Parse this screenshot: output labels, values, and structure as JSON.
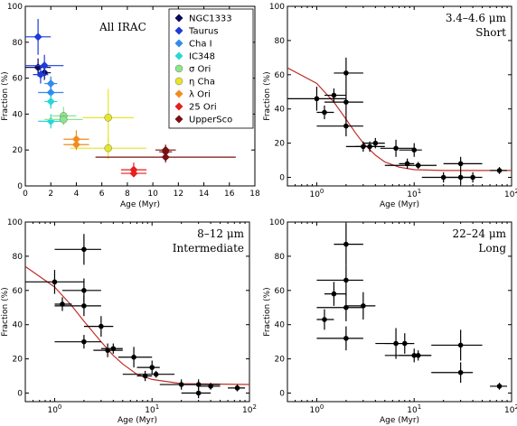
{
  "chart_data": [
    {
      "type": "scatter",
      "title": "All IRAC",
      "xlabel": "Age (Myr)",
      "ylabel": "Fraction (%)",
      "xscale": "linear",
      "xlim": [
        0,
        18
      ],
      "ylim": [
        0,
        100
      ],
      "xticks": [
        "0",
        "2",
        "4",
        "6",
        "8",
        "10",
        "12",
        "14",
        "16",
        "18"
      ],
      "yticks": [
        "0",
        "20",
        "40",
        "60",
        "80",
        "100"
      ],
      "legend_position": "top-right",
      "series": [
        {
          "name": "NGC1333",
          "color": "#0a0a5c",
          "marker": "diamond",
          "points": [
            {
              "x": 1.0,
              "y": 66,
              "xerr": 1.0,
              "yerr": 5
            },
            {
              "x": 1.5,
              "y": 63,
              "xerr": 0.5,
              "yerr": 4
            }
          ]
        },
        {
          "name": "Taurus",
          "color": "#1e3bd8",
          "marker": "diamond",
          "points": [
            {
              "x": 1.0,
              "y": 83,
              "xerr": 1.0,
              "yerr": 10
            },
            {
              "x": 1.5,
              "y": 67,
              "xerr": 1.5,
              "yerr": 6
            },
            {
              "x": 1.2,
              "y": 62,
              "xerr": 0.6,
              "yerr": 5
            }
          ]
        },
        {
          "name": "Cha I",
          "color": "#2f8bf0",
          "marker": "diamond",
          "points": [
            {
              "x": 2.0,
              "y": 52,
              "xerr": 1.0,
              "yerr": 8
            },
            {
              "x": 2.0,
              "y": 57,
              "xerr": 0.5,
              "yerr": 4
            }
          ]
        },
        {
          "name": "IC348",
          "color": "#29d6d6",
          "marker": "diamond",
          "points": [
            {
              "x": 2.0,
              "y": 47,
              "xerr": 0.5,
              "yerr": 4
            },
            {
              "x": 2.0,
              "y": 36,
              "xerr": 1.0,
              "yerr": 4
            }
          ]
        },
        {
          "name": "σ Ori",
          "color": "#8ce68c",
          "marker": "circle",
          "points": [
            {
              "x": 3.0,
              "y": 39,
              "xerr": 1.0,
              "yerr": 5
            },
            {
              "x": 3.0,
              "y": 37,
              "xerr": 1.5,
              "yerr": 3
            }
          ]
        },
        {
          "name": "η Cha",
          "color": "#e6e62a",
          "marker": "circle",
          "points": [
            {
              "x": 6.5,
              "y": 38,
              "xerr": 2.0,
              "yerr": 16
            },
            {
              "x": 6.5,
              "y": 21,
              "xerr": 3.0,
              "yerr": 6
            }
          ]
        },
        {
          "name": "λ Ori",
          "color": "#f08c1e",
          "marker": "diamond",
          "points": [
            {
              "x": 4.0,
              "y": 26,
              "xerr": 1.0,
              "yerr": 5
            },
            {
              "x": 4.0,
              "y": 23,
              "xerr": 1.0,
              "yerr": 3
            }
          ]
        },
        {
          "name": "25 Ori",
          "color": "#e61e1e",
          "marker": "diamond",
          "points": [
            {
              "x": 8.5,
              "y": 9,
              "xerr": 1.0,
              "yerr": 4
            },
            {
              "x": 8.5,
              "y": 7,
              "xerr": 1.0,
              "yerr": 2
            }
          ]
        },
        {
          "name": "UpperSco",
          "color": "#7a1010",
          "marker": "diamond",
          "points": [
            {
              "x": 11.0,
              "y": 16,
              "xerr": 5.5,
              "yerr": 3
            },
            {
              "x": 11.0,
              "y": 19,
              "xerr": 0.5,
              "yerr": 4
            },
            {
              "x": 11.0,
              "y": 20,
              "xerr": 0.8,
              "yerr": 2
            }
          ]
        }
      ]
    },
    {
      "type": "scatter",
      "title": "3.4–4.6 μm",
      "subtitle": "Short",
      "xlabel": "Age (Myr)",
      "ylabel": "Fraction (%)",
      "xscale": "log",
      "xlim": [
        0.5,
        100
      ],
      "ylim": [
        -5,
        100
      ],
      "xticks": [
        "10^0",
        "10^1",
        "10^2"
      ],
      "yticks": [
        "0",
        "20",
        "40",
        "60",
        "80",
        "100"
      ],
      "fit_curve": {
        "color": "#c0302a",
        "points": [
          [
            0.5,
            64
          ],
          [
            1.0,
            55
          ],
          [
            1.5,
            44
          ],
          [
            2.0,
            34
          ],
          [
            2.5,
            26
          ],
          [
            3.0,
            20
          ],
          [
            4.0,
            13
          ],
          [
            5.0,
            9
          ],
          [
            7.0,
            6
          ],
          [
            10.0,
            4.5
          ],
          [
            20.0,
            4
          ],
          [
            100.0,
            4
          ]
        ]
      },
      "points": [
        {
          "x": 1.0,
          "y": 46,
          "xlo": 0.5,
          "xhi": 2.0,
          "yerr": 7
        },
        {
          "x": 1.2,
          "y": 38,
          "xlo": 1.0,
          "xhi": 1.5,
          "yerr": 4
        },
        {
          "x": 1.5,
          "y": 48,
          "xlo": 1.2,
          "xhi": 2.0,
          "yerr": 4
        },
        {
          "x": 2.0,
          "y": 61,
          "xlo": 1.5,
          "xhi": 3.0,
          "yerr": 9
        },
        {
          "x": 2.0,
          "y": 44,
          "xlo": 1.2,
          "xhi": 3.0,
          "yerr": 8
        },
        {
          "x": 2.0,
          "y": 30,
          "xlo": 1.0,
          "xhi": 3.0,
          "yerr": 6
        },
        {
          "x": 3.0,
          "y": 18,
          "xlo": 2.0,
          "xhi": 4.0,
          "yerr": 3
        },
        {
          "x": 3.5,
          "y": 18,
          "xlo": 2.5,
          "xhi": 5.0,
          "yerr": 3
        },
        {
          "x": 4.0,
          "y": 20,
          "xlo": 3.0,
          "xhi": 5.0,
          "yerr": 3
        },
        {
          "x": 6.5,
          "y": 17,
          "xlo": 4.5,
          "xhi": 10.0,
          "yerr": 5
        },
        {
          "x": 10.0,
          "y": 16,
          "xlo": 7.0,
          "xhi": 12.0,
          "yerr": 4
        },
        {
          "x": 8.5,
          "y": 8,
          "xlo": 7.0,
          "xhi": 10.0,
          "yerr": 3
        },
        {
          "x": 11.0,
          "y": 7,
          "xlo": 5.0,
          "xhi": 17.0,
          "yerr": 2
        },
        {
          "x": 30.0,
          "y": 8,
          "xlo": 20.0,
          "xhi": 50.0,
          "yerr": 4
        },
        {
          "x": 30.0,
          "y": 0,
          "xlo": 20.0,
          "xhi": 40.0,
          "yerr": 4
        },
        {
          "x": 20.0,
          "y": 0,
          "xlo": 12.0,
          "xhi": 30.0,
          "yerr": 3
        },
        {
          "x": 40.0,
          "y": 0,
          "xlo": 30.0,
          "xhi": 50.0,
          "yerr": 3
        },
        {
          "x": 75.0,
          "y": 4,
          "xlo": 60.0,
          "xhi": 90.0,
          "yerr": 2
        }
      ]
    },
    {
      "type": "scatter",
      "title": "8–12 μm",
      "subtitle": "Intermediate",
      "xlabel": "Age (Myr)",
      "ylabel": "Fraction (%)",
      "xscale": "log",
      "xlim": [
        0.5,
        100
      ],
      "ylim": [
        -5,
        100
      ],
      "xticks": [
        "10^0",
        "10^1",
        "10^2"
      ],
      "yticks": [
        "0",
        "20",
        "40",
        "60",
        "80",
        "100"
      ],
      "fit_curve": {
        "color": "#c0302a",
        "points": [
          [
            0.5,
            74
          ],
          [
            1.0,
            62
          ],
          [
            1.5,
            51
          ],
          [
            2.0,
            42
          ],
          [
            3.0,
            30
          ],
          [
            4.0,
            22
          ],
          [
            5.0,
            17
          ],
          [
            7.0,
            11
          ],
          [
            10.0,
            8
          ],
          [
            20.0,
            5.5
          ],
          [
            100.0,
            5
          ]
        ]
      },
      "points": [
        {
          "x": 1.0,
          "y": 65,
          "xlo": 0.5,
          "xhi": 2.0,
          "yerr": 7
        },
        {
          "x": 1.2,
          "y": 52,
          "xlo": 1.0,
          "xhi": 1.5,
          "yerr": 4
        },
        {
          "x": 2.0,
          "y": 84,
          "xlo": 1.0,
          "xhi": 3.0,
          "yerr": 9
        },
        {
          "x": 2.0,
          "y": 60,
          "xlo": 1.2,
          "xhi": 3.0,
          "yerr": 7
        },
        {
          "x": 2.0,
          "y": 51,
          "xlo": 1.0,
          "xhi": 3.0,
          "yerr": 6
        },
        {
          "x": 2.0,
          "y": 30,
          "xlo": 1.0,
          "xhi": 3.0,
          "yerr": 4
        },
        {
          "x": 3.0,
          "y": 39,
          "xlo": 2.0,
          "xhi": 4.0,
          "yerr": 6
        },
        {
          "x": 3.5,
          "y": 25,
          "xlo": 2.5,
          "xhi": 5.0,
          "yerr": 4
        },
        {
          "x": 4.0,
          "y": 26,
          "xlo": 3.0,
          "xhi": 5.0,
          "yerr": 3
        },
        {
          "x": 6.5,
          "y": 21,
          "xlo": 4.5,
          "xhi": 10.0,
          "yerr": 6
        },
        {
          "x": 8.5,
          "y": 10,
          "xlo": 7.0,
          "xhi": 10.0,
          "yerr": 3
        },
        {
          "x": 10.0,
          "y": 15,
          "xlo": 7.0,
          "xhi": 12.0,
          "yerr": 4
        },
        {
          "x": 11.0,
          "y": 11,
          "xlo": 5.0,
          "xhi": 17.0,
          "yerr": 2
        },
        {
          "x": 20.0,
          "y": 5,
          "xlo": 12.0,
          "xhi": 30.0,
          "yerr": 3
        },
        {
          "x": 30.0,
          "y": 5,
          "xlo": 20.0,
          "xhi": 50.0,
          "yerr": 3
        },
        {
          "x": 30.0,
          "y": 0,
          "xlo": 20.0,
          "xhi": 40.0,
          "yerr": 3
        },
        {
          "x": 40.0,
          "y": 4,
          "xlo": 30.0,
          "xhi": 50.0,
          "yerr": 2
        },
        {
          "x": 75.0,
          "y": 3,
          "xlo": 60.0,
          "xhi": 90.0,
          "yerr": 2
        }
      ]
    },
    {
      "type": "scatter",
      "title": "22–24 μm",
      "subtitle": "Long",
      "xlabel": "Age (Myr)",
      "ylabel": "Fraction (%)",
      "xscale": "log",
      "xlim": [
        0.5,
        100
      ],
      "ylim": [
        -5,
        100
      ],
      "xticks": [
        "10^0",
        "10^1",
        "10^2"
      ],
      "yticks": [
        "0",
        "20",
        "40",
        "60",
        "80",
        "100"
      ],
      "points": [
        {
          "x": 1.2,
          "y": 43,
          "xlo": 1.0,
          "xhi": 1.5,
          "yerr": 6
        },
        {
          "x": 1.5,
          "y": 58,
          "xlo": 1.2,
          "xhi": 2.0,
          "yerr": 7
        },
        {
          "x": 2.0,
          "y": 87,
          "xlo": 1.5,
          "xhi": 3.0,
          "yerr": 12
        },
        {
          "x": 2.0,
          "y": 66,
          "xlo": 1.0,
          "xhi": 3.0,
          "yerr": 9
        },
        {
          "x": 2.0,
          "y": 50,
          "xlo": 1.0,
          "xhi": 3.0,
          "yerr": 8
        },
        {
          "x": 2.0,
          "y": 32,
          "xlo": 1.0,
          "xhi": 3.0,
          "yerr": 7
        },
        {
          "x": 3.0,
          "y": 51,
          "xlo": 2.0,
          "xhi": 4.0,
          "yerr": 8
        },
        {
          "x": 6.5,
          "y": 29,
          "xlo": 4.0,
          "xhi": 10.0,
          "yerr": 9
        },
        {
          "x": 8.0,
          "y": 29,
          "xlo": 5.0,
          "xhi": 10.0,
          "yerr": 6
        },
        {
          "x": 10.0,
          "y": 22,
          "xlo": 5.0,
          "xhi": 15.0,
          "yerr": 4
        },
        {
          "x": 11.0,
          "y": 22,
          "xlo": 7.0,
          "xhi": 15.0,
          "yerr": 3
        },
        {
          "x": 30.0,
          "y": 28,
          "xlo": 15.0,
          "xhi": 50.0,
          "yerr": 9
        },
        {
          "x": 30.0,
          "y": 12,
          "xlo": 15.0,
          "xhi": 40.0,
          "yerr": 6
        },
        {
          "x": 75.0,
          "y": 4,
          "xlo": 60.0,
          "xhi": 90.0,
          "yerr": 2
        }
      ]
    }
  ]
}
